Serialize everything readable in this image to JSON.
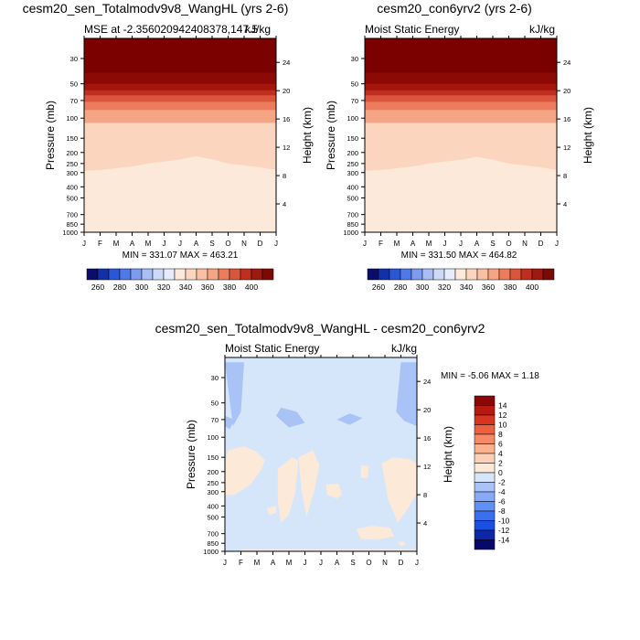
{
  "figure": {
    "panels": [
      {
        "id": "panel-1",
        "title": "cesm20_sen_Totalmodv9v8_WangHL (yrs 2-6)",
        "left_label": "MSE at -2.356020942408378,147.5",
        "right_label": "kJ/kg",
        "stats": "MIN = 331.07 MAX = 463.21"
      },
      {
        "id": "panel-2",
        "title": "cesm20_con6yrv2 (yrs 2-6)",
        "left_label": "Moist Static Energy",
        "right_label": "kJ/kg",
        "stats": "MIN = 331.50 MAX = 464.82"
      },
      {
        "id": "panel-3",
        "title": "cesm20_sen_Totalmodv9v8_WangHL - cesm20_con6yrv2",
        "left_label": "Moist Static Energy",
        "right_label": "kJ/kg",
        "stats": "MIN =  -5.06 MAX =   1.18"
      }
    ]
  },
  "chart_data": [
    {
      "type": "heatmap",
      "title": "cesm20_sen_Totalmodv9v8_WangHL (yrs 2-6)",
      "x": [
        "J",
        "F",
        "M",
        "A",
        "M",
        "J",
        "J",
        "A",
        "S",
        "O",
        "N",
        "D",
        "J"
      ],
      "ylabel": "Pressure (mb)",
      "y2label": "Height (km)",
      "yticks": [
        30,
        50,
        70,
        100,
        150,
        200,
        250,
        300,
        400,
        500,
        700,
        850,
        1000
      ],
      "y2ticks": [
        4,
        8,
        12,
        16,
        20,
        24
      ],
      "ylim": [
        1000,
        20
      ],
      "contours_mb": [
        {
          "level": 420,
          "boundary": [
            40,
            40,
            40,
            40,
            40,
            40,
            40,
            40,
            40,
            40,
            40,
            40,
            40
          ]
        },
        {
          "level": 400,
          "boundary": [
            50,
            50,
            50,
            50,
            50,
            50,
            50,
            50,
            50,
            50,
            50,
            50,
            50
          ]
        },
        {
          "level": 390,
          "boundary": [
            57,
            57,
            57,
            57,
            57,
            57,
            57,
            57,
            57,
            57,
            57,
            57,
            57
          ]
        },
        {
          "level": 380,
          "boundary": [
            63,
            63,
            63,
            63,
            63,
            63,
            63,
            63,
            63,
            63,
            63,
            63,
            63
          ]
        },
        {
          "level": 370,
          "boundary": [
            72,
            72,
            72,
            72,
            72,
            72,
            72,
            72,
            72,
            72,
            72,
            72,
            72
          ]
        },
        {
          "level": 360,
          "boundary": [
            85,
            85,
            85,
            85,
            85,
            85,
            85,
            85,
            85,
            85,
            85,
            85,
            85
          ]
        },
        {
          "level": 350,
          "boundary": [
            110,
            110,
            110,
            110,
            110,
            110,
            110,
            110,
            110,
            110,
            110,
            110,
            110
          ]
        },
        {
          "level": 340,
          "boundary": [
            290,
            285,
            275,
            265,
            250,
            240,
            230,
            215,
            230,
            250,
            260,
            270,
            285
          ]
        },
        {
          "level": 330,
          "boundary": [
            960,
            955,
            955,
            955,
            955,
            955,
            955,
            955,
            955,
            955,
            955,
            955,
            960
          ]
        }
      ],
      "colorbar": {
        "labels": [
          260,
          280,
          300,
          320,
          340,
          360,
          380,
          400
        ]
      },
      "min": 331.07,
      "max": 463.21
    },
    {
      "type": "heatmap",
      "title": "cesm20_con6yrv2 (yrs 2-6)",
      "x": [
        "J",
        "F",
        "M",
        "A",
        "M",
        "J",
        "J",
        "A",
        "S",
        "O",
        "N",
        "D",
        "J"
      ],
      "ylabel": "Pressure (mb)",
      "y2label": "Height (km)",
      "yticks": [
        30,
        50,
        70,
        100,
        150,
        200,
        250,
        300,
        400,
        500,
        700,
        850,
        1000
      ],
      "y2ticks": [
        4,
        8,
        12,
        16,
        20,
        24
      ],
      "ylim": [
        1000,
        20
      ],
      "contours_mb": [
        {
          "level": 420,
          "boundary": [
            40,
            40,
            40,
            40,
            40,
            40,
            40,
            40,
            40,
            40,
            40,
            40,
            40
          ]
        },
        {
          "level": 400,
          "boundary": [
            50,
            50,
            50,
            50,
            50,
            50,
            50,
            50,
            50,
            50,
            50,
            50,
            50
          ]
        },
        {
          "level": 390,
          "boundary": [
            57,
            57,
            57,
            57,
            57,
            57,
            57,
            57,
            57,
            57,
            57,
            57,
            57
          ]
        },
        {
          "level": 380,
          "boundary": [
            63,
            63,
            63,
            63,
            63,
            63,
            63,
            63,
            63,
            63,
            63,
            63,
            63
          ]
        },
        {
          "level": 370,
          "boundary": [
            72,
            72,
            72,
            72,
            72,
            72,
            72,
            72,
            72,
            72,
            72,
            72,
            72
          ]
        },
        {
          "level": 360,
          "boundary": [
            85,
            85,
            85,
            85,
            85,
            85,
            85,
            85,
            85,
            85,
            85,
            85,
            85
          ]
        },
        {
          "level": 350,
          "boundary": [
            110,
            110,
            110,
            110,
            110,
            110,
            110,
            110,
            110,
            110,
            110,
            110,
            110
          ]
        },
        {
          "level": 340,
          "boundary": [
            290,
            285,
            275,
            265,
            250,
            240,
            232,
            218,
            232,
            250,
            260,
            270,
            285
          ]
        },
        {
          "level": 330,
          "boundary": [
            960,
            955,
            955,
            955,
            955,
            955,
            955,
            955,
            955,
            955,
            955,
            955,
            960
          ]
        }
      ],
      "colorbar": {
        "labels": [
          260,
          280,
          300,
          320,
          340,
          360,
          380,
          400
        ]
      },
      "min": 331.5,
      "max": 464.82
    },
    {
      "type": "heatmap",
      "title": "cesm20_sen_Totalmodv9v8_WangHL - cesm20_con6yrv2",
      "x": [
        "J",
        "F",
        "M",
        "A",
        "M",
        "J",
        "J",
        "A",
        "S",
        "O",
        "N",
        "D",
        "J"
      ],
      "ylabel": "Pressure (mb)",
      "y2label": "Height (km)",
      "yticks": [
        30,
        50,
        70,
        100,
        150,
        200,
        250,
        300,
        400,
        500,
        700,
        850,
        1000
      ],
      "y2ticks": [
        4,
        8,
        12,
        16,
        20,
        24
      ],
      "ylim": [
        1000,
        20
      ],
      "background_level": -2,
      "regions": [
        {
          "level": -4,
          "points": [
            [
              0,
              22
            ],
            [
              0.5,
              80
            ],
            [
              1,
              60
            ],
            [
              1.2,
              22
            ]
          ]
        },
        {
          "level": -4,
          "points": [
            [
              0,
              65
            ],
            [
              0.6,
              70
            ],
            [
              0.3,
              85
            ],
            [
              0,
              80
            ]
          ]
        },
        {
          "level": -4,
          "points": [
            [
              3.2,
              65
            ],
            [
              3.5,
              55
            ],
            [
              4.5,
              60
            ],
            [
              5.0,
              75
            ],
            [
              4.0,
              82
            ]
          ]
        },
        {
          "level": -4,
          "points": [
            [
              7.0,
              70
            ],
            [
              7.8,
              62
            ],
            [
              8.6,
              68
            ],
            [
              7.8,
              78
            ]
          ]
        },
        {
          "level": -4,
          "points": [
            [
              11,
              22
            ],
            [
              12,
              22
            ],
            [
              12,
              80
            ],
            [
              11.2,
              72
            ],
            [
              10.7,
              60
            ]
          ]
        },
        {
          "level": 0,
          "points": [
            [
              0.2,
              130
            ],
            [
              1.2,
              120
            ],
            [
              2.0,
              135
            ],
            [
              2.5,
              160
            ],
            [
              2.3,
              190
            ],
            [
              1.6,
              260
            ],
            [
              0.6,
              320
            ],
            [
              0,
              320
            ],
            [
              0,
              170
            ]
          ]
        },
        {
          "level": 0,
          "points": [
            [
              2.6,
              420
            ],
            [
              3.2,
              400
            ],
            [
              3.2,
              460
            ],
            [
              2.8,
              480
            ]
          ]
        },
        {
          "level": 0,
          "points": [
            [
              3.3,
              190
            ],
            [
              4.2,
              150
            ],
            [
              4.6,
              160
            ],
            [
              4.4,
              300
            ],
            [
              4.0,
              480
            ],
            [
              3.5,
              560
            ],
            [
              3.3,
              360
            ]
          ]
        },
        {
          "level": 0,
          "points": [
            [
              4.6,
              150
            ],
            [
              5.5,
              130
            ],
            [
              5.9,
              175
            ],
            [
              5.6,
              290
            ],
            [
              5.1,
              500
            ],
            [
              4.8,
              300
            ]
          ]
        },
        {
          "level": 0,
          "points": [
            [
              6.3,
              260
            ],
            [
              7.1,
              255
            ],
            [
              7.3,
              320
            ],
            [
              7.0,
              345
            ],
            [
              6.4,
              320
            ]
          ]
        },
        {
          "level": 0,
          "points": [
            [
              8.5,
              175
            ],
            [
              9.0,
              180
            ],
            [
              8.9,
              230
            ],
            [
              8.5,
              225
            ]
          ]
        },
        {
          "level": 0,
          "points": [
            [
              9.8,
              170
            ],
            [
              10.5,
              150
            ],
            [
              11.5,
              155
            ],
            [
              12,
              170
            ],
            [
              12,
              310
            ],
            [
              11.3,
              450
            ],
            [
              10.8,
              560
            ],
            [
              10.2,
              350
            ]
          ]
        },
        {
          "level": 0,
          "points": [
            [
              8.2,
              640
            ],
            [
              9.2,
              600
            ],
            [
              10.3,
              620
            ],
            [
              10.6,
              740
            ],
            [
              9.5,
              790
            ],
            [
              8.5,
              780
            ]
          ]
        },
        {
          "level": 0,
          "points": [
            [
              10.8,
              830
            ],
            [
              11.2,
              820
            ],
            [
              11.3,
              880
            ],
            [
              11.0,
              900
            ]
          ]
        },
        {
          "level": 0,
          "points": [
            [
              1.0,
              960
            ],
            [
              12,
              960
            ],
            [
              12,
              1000
            ],
            [
              1.0,
              1000
            ]
          ]
        }
      ],
      "colorbar": {
        "labels": [
          14,
          12,
          10,
          8,
          6,
          4,
          2,
          0,
          -2,
          -4,
          -6,
          -8,
          -10,
          -12,
          -14
        ]
      },
      "min": -5.06,
      "max": 1.18
    }
  ],
  "colors": {
    "mse_scale": [
      "#0b0d6b",
      "#1230a8",
      "#2a56d8",
      "#5079e8",
      "#7d9cf0",
      "#a8bef5",
      "#cdd9f8",
      "#e6ecfb",
      "#fde9d9",
      "#fcd5be",
      "#fbbfa2",
      "#f5a583",
      "#eb7c5e",
      "#d9553b",
      "#c12e1f",
      "#9c1a10",
      "#7b0a04"
    ],
    "mse_levels": {
      "330": "#fde9d9",
      "340": "#fcd5be",
      "350": "#f5a583",
      "360": "#eb7c5e",
      "370": "#d9553b",
      "380": "#c12e1f",
      "390": "#a5150c",
      "400": "#8c0a06",
      "420": "#7b0000"
    },
    "diff_scale": [
      "#08086b",
      "#0d27a8",
      "#1a4fe0",
      "#3a6ff0",
      "#5f90f5",
      "#86aaf6",
      "#a9c3f7",
      "#d6e6fa",
      "#fde9d8",
      "#fcd0b5",
      "#fbb38f",
      "#f68a66",
      "#ed5f3e",
      "#d8341e",
      "#b71a0f",
      "#8b0804"
    ],
    "diff_levels": {
      "-4": "#a9c3f7",
      "-2": "#d6e6fa",
      "0": "#fde9d8"
    }
  }
}
